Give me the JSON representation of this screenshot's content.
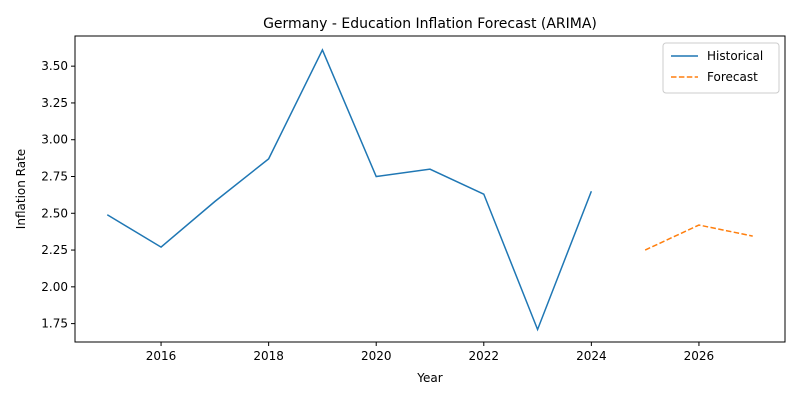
{
  "chart_data": {
    "type": "line",
    "title": "Germany - Education Inflation Forecast (ARIMA)",
    "xlabel": "Year",
    "ylabel": "Inflation Rate",
    "xlim": [
      2014.4,
      2027.6
    ],
    "ylim": [
      1.625,
      3.705
    ],
    "xticks": [
      2016,
      2018,
      2020,
      2022,
      2024,
      2026
    ],
    "yticks": [
      1.75,
      2.0,
      2.25,
      2.5,
      2.75,
      3.0,
      3.25,
      3.5
    ],
    "grid": false,
    "legend_position": "top-right",
    "series": [
      {
        "name": "Historical",
        "color": "#1f77b4",
        "style": "solid",
        "x": [
          2015,
          2016,
          2017,
          2018,
          2019,
          2020,
          2021,
          2022,
          2023,
          2024
        ],
        "y": [
          2.49,
          2.27,
          2.58,
          2.87,
          3.61,
          2.75,
          2.8,
          2.63,
          1.71,
          2.65
        ]
      },
      {
        "name": "Forecast",
        "color": "#ff7f0e",
        "style": "dashed",
        "x": [
          2025,
          2026,
          2027
        ],
        "y": [
          2.25,
          2.42,
          2.345
        ]
      }
    ]
  }
}
